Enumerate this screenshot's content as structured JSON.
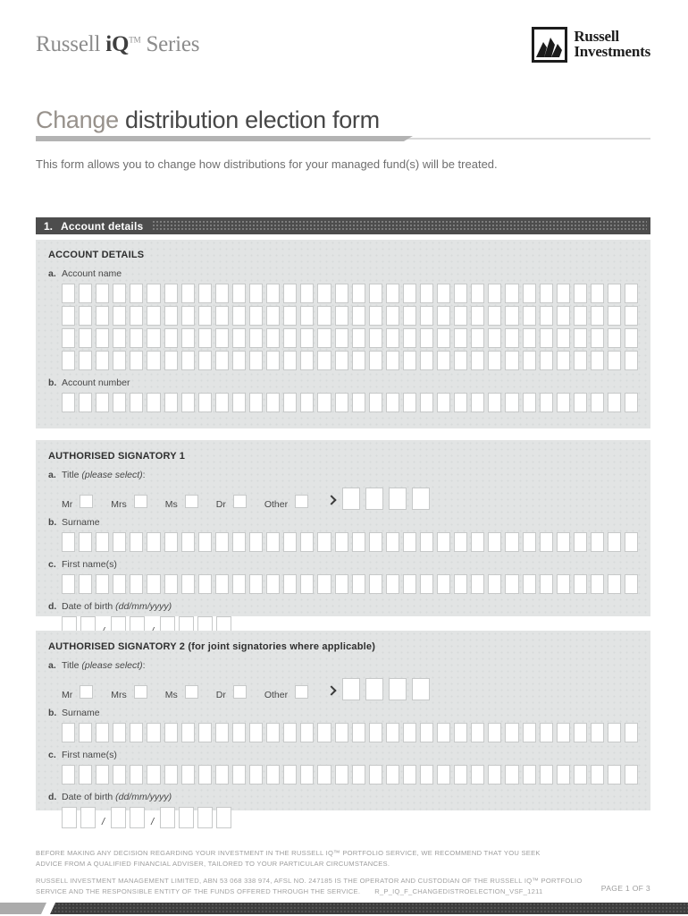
{
  "header": {
    "series_brand": {
      "russell": "Russell ",
      "iq": "iQ",
      "tm": "TM",
      "series": " Series"
    },
    "logo": {
      "line1": "Russell",
      "line2": "Investments"
    }
  },
  "title": {
    "prefix": "Change",
    "rest": " distribution election form"
  },
  "intro": "This form allows you to change how distributions for your managed fund(s) will be treated.",
  "section1": {
    "number": "1.",
    "label": "Account details"
  },
  "account_details": {
    "heading": "ACCOUNT DETAILS",
    "account_name": {
      "letter": "a.",
      "label": "Account name",
      "rows": 4,
      "boxes_per_row": 34
    },
    "account_number": {
      "letter": "b.",
      "label": "Account number",
      "boxes_per_row": 34
    }
  },
  "signatories": [
    {
      "heading": "AUTHORISED SIGNATORY 1",
      "title_field": {
        "letter": "a.",
        "label": "Title ",
        "hint": "(please select)",
        "suffix": ":",
        "options": [
          "Mr",
          "Mrs",
          "Ms",
          "Dr",
          "Other"
        ],
        "other_boxes": 4
      },
      "surname": {
        "letter": "b.",
        "label": "Surname",
        "boxes": 34
      },
      "first_names": {
        "letter": "c.",
        "label": "First name(s)",
        "boxes": 34
      },
      "dob": {
        "letter": "d.",
        "label": "Date of birth ",
        "format": "(dd/mm/yyyy)",
        "groups": "2,2,4",
        "separator": "/"
      }
    },
    {
      "heading": "AUTHORISED SIGNATORY 2 (for joint signatories where applicable)",
      "title_field": {
        "letter": "a.",
        "label": "Title ",
        "hint": "(please select)",
        "suffix": ":",
        "options": [
          "Mr",
          "Mrs",
          "Ms",
          "Dr",
          "Other"
        ],
        "other_boxes": 4
      },
      "surname": {
        "letter": "b.",
        "label": "Surname",
        "boxes": 34
      },
      "first_names": {
        "letter": "c.",
        "label": "First name(s)",
        "boxes": 34
      },
      "dob": {
        "letter": "d.",
        "label": "Date of birth ",
        "format": "(dd/mm/yyyy)",
        "groups": "2,2,4",
        "separator": "/"
      }
    }
  ],
  "footer": {
    "disclaimer1": "BEFORE MAKING ANY DECISION REGARDING YOUR INVESTMENT IN THE RUSSELL IQ™ PORTFOLIO SERVICE, WE RECOMMEND THAT YOU SEEK ADVICE FROM A QUALIFIED FINANCIAL ADVISER, TAILORED TO YOUR PARTICULAR CIRCUMSTANCES.",
    "disclaimer2": "RUSSELL INVESTMENT MANAGEMENT LIMITED, ABN 53 068 338 974, AFSL NO. 247185 IS THE OPERATOR AND CUSTODIAN OF THE RUSSELL IQ™ PORTFOLIO SERVICE AND THE  RESPONSIBLE ENTITY OF THE FUNDS OFFERED THROUGH THE SERVICE.",
    "form_code": "R_P_IQ_F_CHANGEDISTROELECTION_VSF_1211",
    "page": "PAGE 1 OF 3"
  },
  "colors": {
    "section_bar": "#4d4d4d",
    "panel_bg": "#e2e4e4",
    "title_prefix": "#97918b",
    "title_main": "#474747"
  }
}
